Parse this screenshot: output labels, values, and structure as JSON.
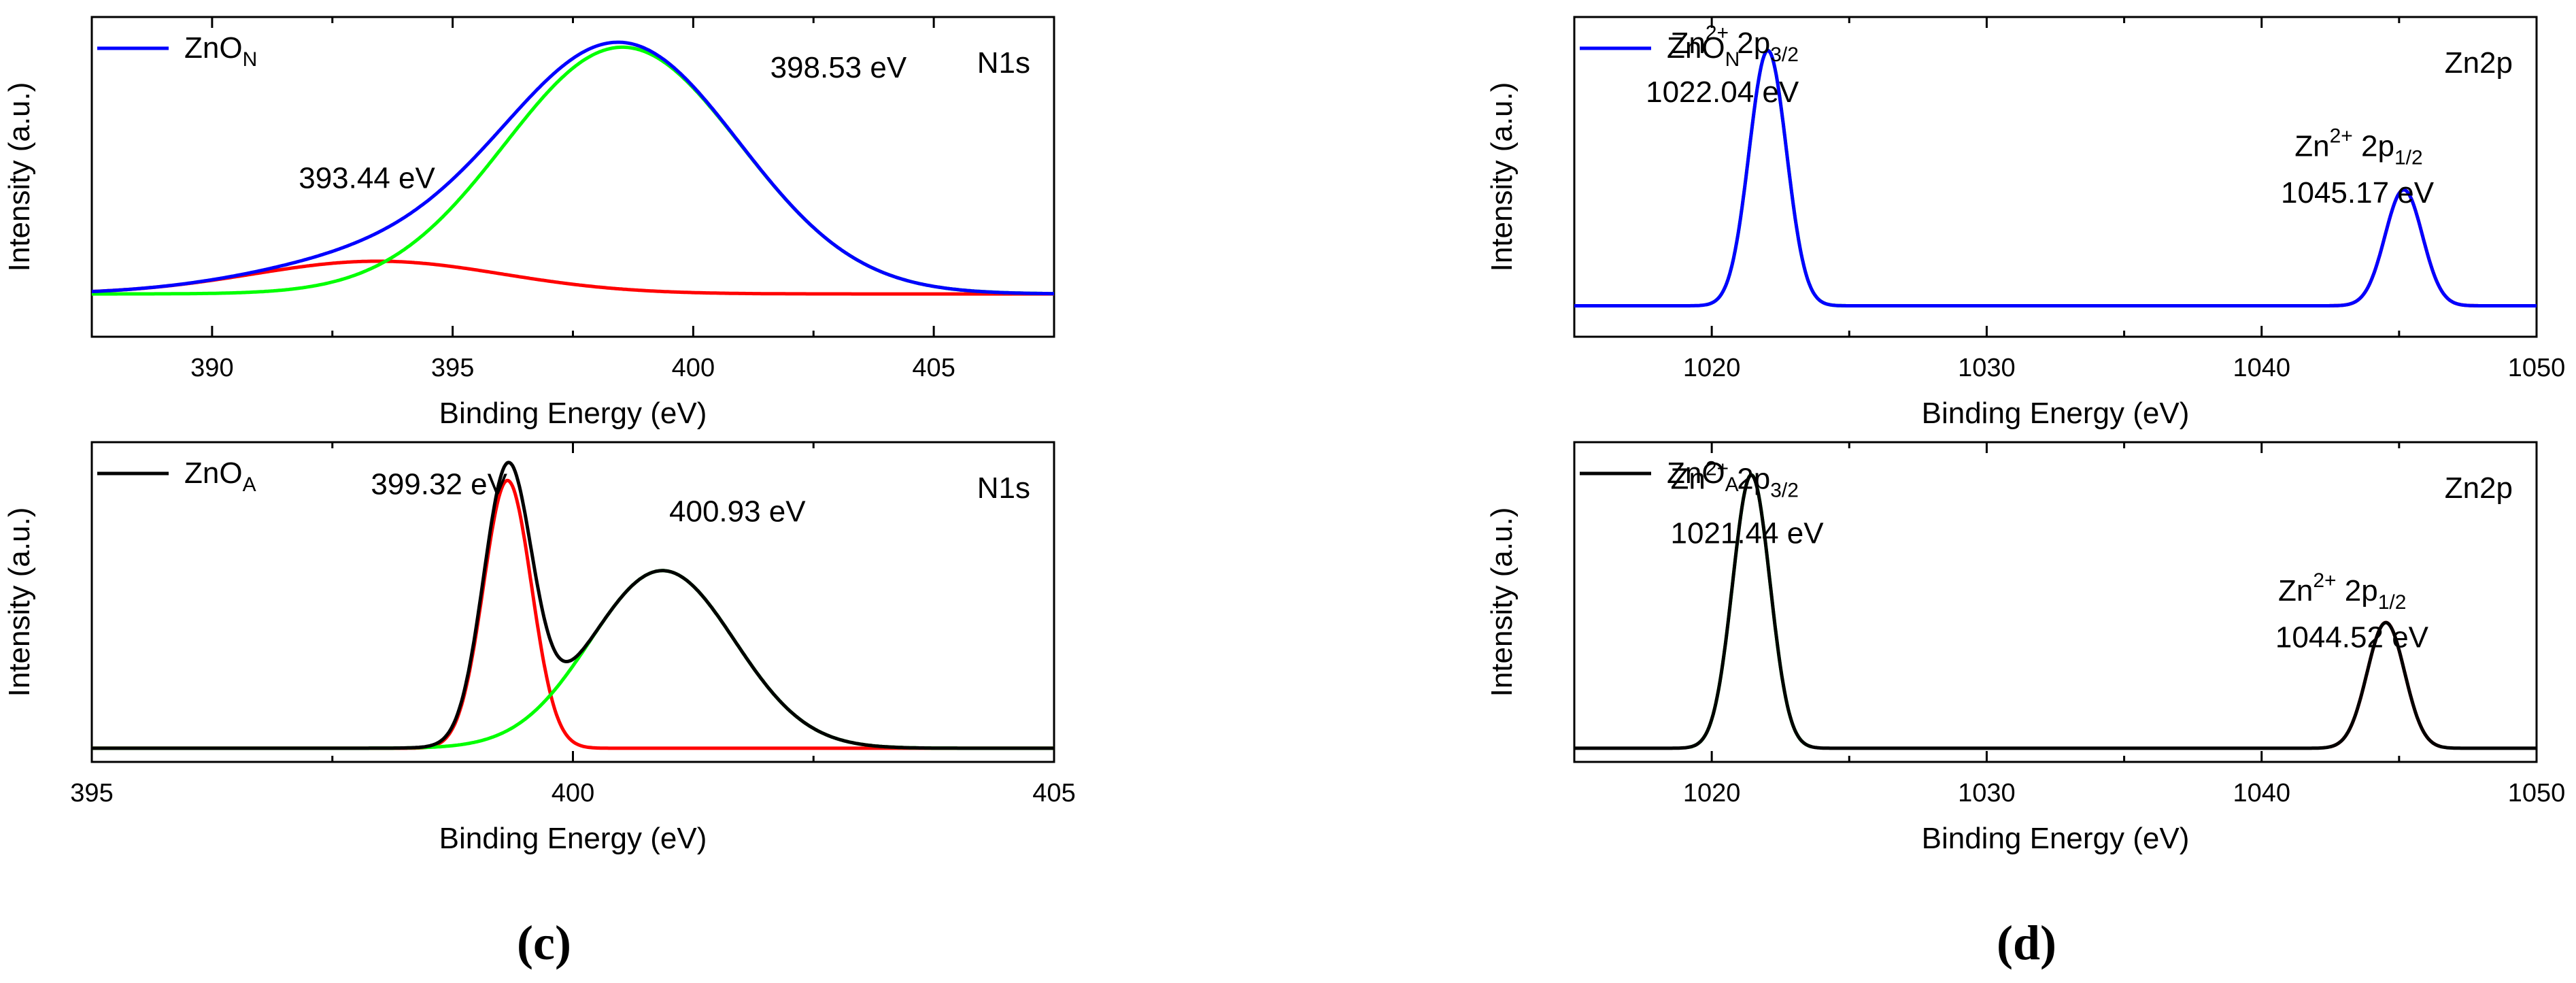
{
  "panel_labels": {
    "c": "(c)",
    "d": "(d)"
  },
  "chart_data": [
    {
      "id": "c-top",
      "type": "line",
      "title": "N1s",
      "xlabel": "Binding Energy (eV)",
      "ylabel": "Intensity (a.u.)",
      "xlim": [
        387.5,
        407.5
      ],
      "ylim": [
        -0.17,
        1.1
      ],
      "xticks": [
        390,
        395,
        400,
        405
      ],
      "tick_labels": [
        "390",
        "395",
        "400",
        "405"
      ],
      "legend": {
        "label": "ZnO",
        "sub": "N",
        "color": "#0000ff",
        "position": "top-left"
      },
      "series": [
        {
          "name": "fit peak 393.44 eV",
          "color": "#ff0000",
          "baseline": 0,
          "peaks": [
            {
              "center": 393.44,
              "height": 0.13,
              "sigma": 2.6
            }
          ]
        },
        {
          "name": "fit peak 398.53 eV",
          "color": "#00ff00",
          "baseline": 0,
          "peaks": [
            {
              "center": 398.53,
              "height": 0.98,
              "sigma": 2.45
            }
          ]
        },
        {
          "name": "ZnO_N envelope",
          "color": "#0000ff",
          "baseline": 0,
          "peaks": [
            {
              "center": 393.44,
              "height": 0.13,
              "sigma": 2.6
            },
            {
              "center": 398.53,
              "height": 0.98,
              "sigma": 2.45
            }
          ]
        }
      ],
      "annotations": [
        {
          "text": "393.44 eV",
          "x": 391.8,
          "y": 0.42
        },
        {
          "text": "398.53 eV",
          "x": 401.6,
          "y": 0.86
        }
      ]
    },
    {
      "id": "c-bottom",
      "type": "line",
      "title": "N1s",
      "xlabel": "Binding Energy (eV)",
      "ylabel": "Intensity (a.u.)",
      "xlim": [
        395,
        405
      ],
      "ylim": [
        -0.05,
        1.12
      ],
      "xticks": [
        395,
        400,
        405
      ],
      "tick_labels": [
        "395",
        "400",
        "405"
      ],
      "legend": {
        "label": "ZnO",
        "sub": "A",
        "color": "#000000",
        "position": "top-left"
      },
      "series": [
        {
          "name": "fit peak 399.32 eV",
          "color": "#ff0000",
          "baseline": 0,
          "peaks": [
            {
              "center": 399.32,
              "height": 0.98,
              "sigma": 0.25
            }
          ]
        },
        {
          "name": "fit peak 400.93 eV",
          "color": "#00ff00",
          "baseline": 0,
          "peaks": [
            {
              "center": 400.93,
              "height": 0.65,
              "sigma": 0.75
            }
          ]
        },
        {
          "name": "ZnO_A envelope",
          "color": "#000000",
          "baseline": 0,
          "peaks": [
            {
              "center": 399.32,
              "height": 0.98,
              "sigma": 0.25
            },
            {
              "center": 400.93,
              "height": 0.65,
              "sigma": 0.75
            }
          ]
        }
      ],
      "annotations": [
        {
          "text": "399.32 eV",
          "x": 397.9,
          "y": 0.93
        },
        {
          "text": "400.93 eV",
          "x": 401.0,
          "y": 0.83
        }
      ]
    },
    {
      "id": "d-top",
      "type": "line",
      "title": "Zn2p",
      "xlabel": "Binding Energy (eV)",
      "ylabel": "Intensity (a.u.)",
      "xlim": [
        1015,
        1050
      ],
      "ylim": [
        -0.12,
        1.12
      ],
      "xticks": [
        1020,
        1030,
        1040,
        1050
      ],
      "tick_labels": [
        "1020",
        "1030",
        "1040",
        "1050"
      ],
      "legend": {
        "label": "ZnO",
        "sub": "N",
        "color": "#0000ff",
        "position": "top-left"
      },
      "series": [
        {
          "name": "Zn 2p3/2 fit",
          "color": "#00ff00",
          "baseline": 0,
          "peaks": [
            {
              "center": 1022.04,
              "height": 0.99,
              "sigma": 0.68
            }
          ],
          "range": [
            1019.8,
            1025.2
          ]
        },
        {
          "name": "Zn 2p1/2 fit",
          "color": "#ff0000",
          "baseline": 0,
          "peaks": [
            {
              "center": 1045.17,
              "height": 0.45,
              "sigma": 0.68
            }
          ],
          "range": [
            1042.3,
            1048.0
          ]
        },
        {
          "name": "ZnO_N envelope",
          "color": "#0000ff",
          "baseline": 0,
          "peaks": [
            {
              "center": 1022.04,
              "height": 0.99,
              "sigma": 0.68
            },
            {
              "center": 1045.17,
              "height": 0.45,
              "sigma": 0.68
            }
          ]
        }
      ],
      "annotations": [
        {
          "zn": "Zn",
          "charge": "2+",
          "orb": "2p",
          "orbsub": "3/2",
          "x": 1018.5,
          "y": 0.98,
          "value": "1022.04 eV",
          "vx": 1017.6,
          "vy": 0.79
        },
        {
          "zn": "Zn",
          "charge": "2+",
          "orb": "2p",
          "orbsub": "1/2",
          "x": 1041.2,
          "y": 0.58,
          "value": "1045.17 eV",
          "vx": 1040.7,
          "vy": 0.4
        }
      ]
    },
    {
      "id": "d-bottom",
      "type": "line",
      "title": "Zn2p",
      "xlabel": "Binding Energy (eV)",
      "ylabel": "Intensity (a.u.)",
      "xlim": [
        1015,
        1050
      ],
      "ylim": [
        -0.05,
        1.12
      ],
      "xticks": [
        1020,
        1030,
        1040,
        1050
      ],
      "tick_labels": [
        "1020",
        "1030",
        "1040",
        "1050"
      ],
      "legend": {
        "label": "ZnO",
        "sub": "A",
        "color": "#000000",
        "position": "top-left"
      },
      "series": [
        {
          "name": "Zn 2p3/2 fit",
          "color": "#00ff00",
          "baseline": 0,
          "peaks": [
            {
              "center": 1021.44,
              "height": 1.0,
              "sigma": 0.68
            }
          ],
          "range": [
            1019.2,
            1023.6
          ]
        },
        {
          "name": "Zn 2p1/2 fit",
          "color": "#ff0000",
          "baseline": 0,
          "peaks": [
            {
              "center": 1044.52,
              "height": 0.46,
              "sigma": 0.68
            }
          ],
          "range": [
            1042.5,
            1046.5
          ]
        },
        {
          "name": "ZnO_A envelope",
          "color": "#000000",
          "baseline": 0,
          "peaks": [
            {
              "center": 1021.44,
              "height": 1.0,
              "sigma": 0.68
            },
            {
              "center": 1044.52,
              "height": 0.46,
              "sigma": 0.68
            }
          ]
        }
      ],
      "annotations": [
        {
          "zn": "Zn",
          "charge": "2+",
          "orb": "2p",
          "orbsub": "3/2",
          "x": 1018.5,
          "y": 0.95,
          "value": "1021.44 eV",
          "vx": 1018.5,
          "vy": 0.75
        },
        {
          "zn": "Zn",
          "charge": "2+",
          "orb": "2p",
          "orbsub": "1/2",
          "x": 1040.6,
          "y": 0.54,
          "value": "1044.52 eV",
          "vx": 1040.5,
          "vy": 0.37
        }
      ]
    }
  ]
}
